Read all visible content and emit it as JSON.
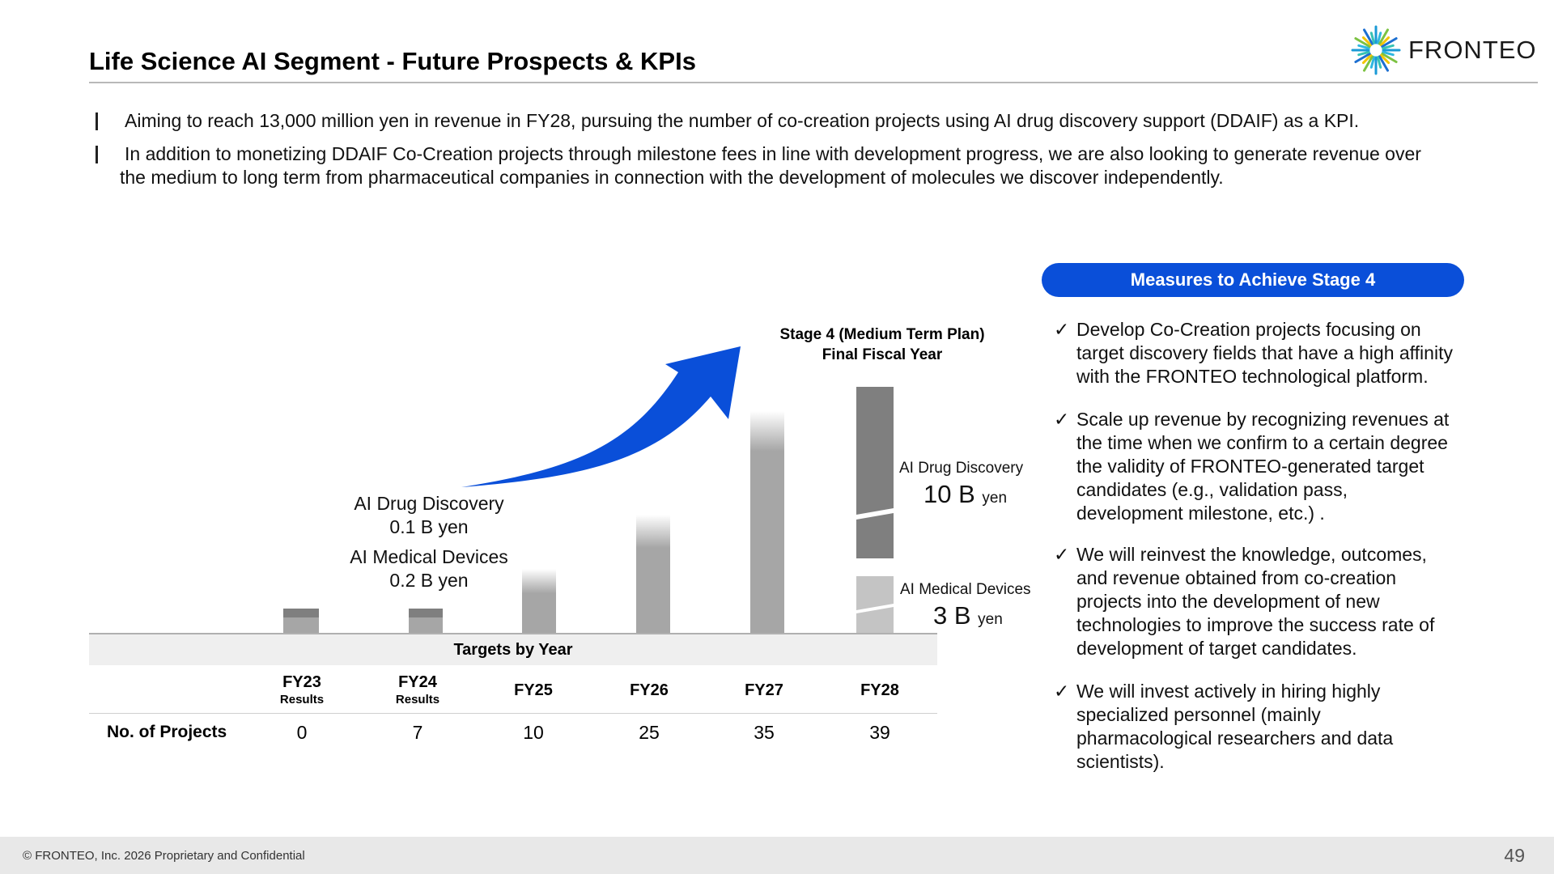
{
  "header": {
    "title": "Life Science AI Segment - Future Prospects & KPIs",
    "logo_text": "FRONTEO",
    "logo_icon": "starburst-icon"
  },
  "bullets": [
    {
      "line1": "Aiming to reach 13,000 million yen in revenue in FY28, pursuing the number of co-creation projects using AI drug discovery support (DDAIF) as a KPI.",
      "line2": ""
    },
    {
      "line1": "In addition to monetizing DDAIF Co-Creation projects through milestone fees in line with development progress, we are also looking to generate revenue over",
      "line2": "the medium to long term from pharmaceutical companies in connection with the development of molecules we discover independently."
    }
  ],
  "chart_data": {
    "type": "bar",
    "categories": [
      "FY23",
      "FY24",
      "FY25",
      "FY26",
      "FY27",
      "FY28"
    ],
    "category_subs": [
      "Results",
      "Results",
      "",
      "",
      "",
      ""
    ],
    "section_label": "Targets by Year",
    "table": {
      "row_label": "No. of Projects",
      "values": [
        0,
        7,
        10,
        25,
        35,
        39
      ]
    },
    "annotations": {
      "drug_early": [
        "AI Drug Discovery",
        "0.1 B yen"
      ],
      "devices_early": [
        "AI Medical Devices",
        "0.2 B yen"
      ],
      "stage_label": [
        "Stage 4 (Medium Term Plan)",
        "Final Fiscal Year"
      ],
      "drug_final_label": "AI Drug Discovery",
      "drug_final_value": "10 B",
      "drug_final_unit": "yen",
      "devices_final_label": "AI Medical Devices",
      "devices_final_value": "3 B",
      "devices_final_unit": "yen"
    },
    "colors": {
      "bar": "#a6a6a6",
      "drug": "#7f7f7f",
      "devices": "#c4c4c4",
      "arrow": "#0a4fd9"
    }
  },
  "measures": {
    "title": "Measures to Achieve Stage 4",
    "check_glyph": "✓",
    "items": [
      [
        "Develop Co-Creation projects focusing on",
        "target discovery fields that have a high affinity",
        "with the FRONTEO technological platform."
      ],
      [
        "Scale up revenue by recognizing revenues at",
        "the time when we confirm to a certain degree",
        "the validity of FRONTEO-generated target",
        "candidates (e.g., validation pass,",
        "development milestone, etc.) ."
      ],
      [
        "We will reinvest the knowledge, outcomes,",
        "and revenue obtained from co-creation",
        "projects into the development of new",
        "technologies to improve the success rate of",
        "development of target candidates."
      ],
      [
        "We will invest actively in hiring highly",
        "specialized personnel (mainly",
        "pharmacological researchers and data",
        "scientists)."
      ]
    ]
  },
  "footer": {
    "copyright": "© FRONTEO, Inc. 2026  Proprietary and Confidential",
    "page_number": "49"
  }
}
